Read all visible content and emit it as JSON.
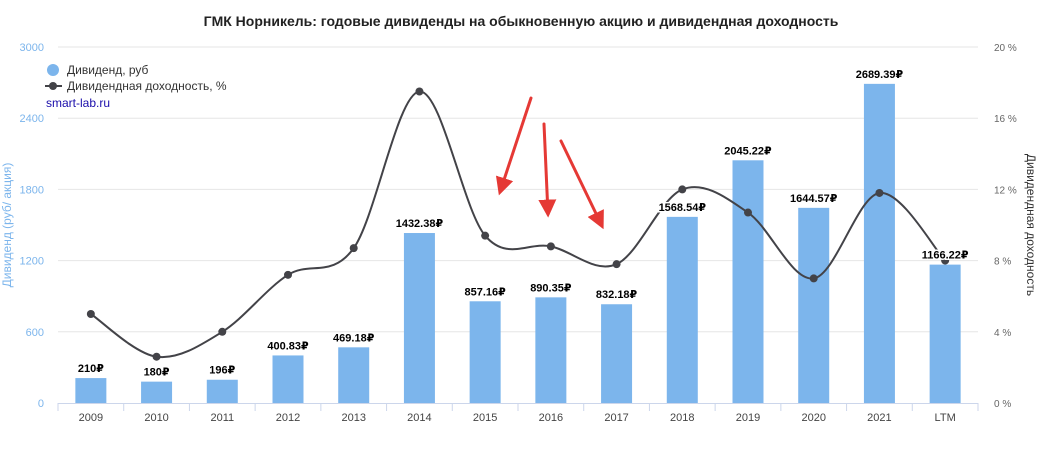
{
  "chart_data": {
    "type": "bar",
    "title": "ГМК Норникель: годовые дивиденды на обыкновенную акцию и дивидендная доходность",
    "categories": [
      "2009",
      "2010",
      "2011",
      "2012",
      "2013",
      "2014",
      "2015",
      "2016",
      "2017",
      "2018",
      "2019",
      "2020",
      "2021",
      "LTM"
    ],
    "series": [
      {
        "name": "Дивиденд, руб",
        "type": "bar",
        "axis": "left",
        "color": "#7cb5ec",
        "values": [
          210,
          180,
          196,
          400.83,
          469.18,
          1432.38,
          857.16,
          890.35,
          832.18,
          1568.54,
          2045.22,
          1644.57,
          2689.39,
          1166.22
        ],
        "labels": [
          "210₽",
          "180₽",
          "196₽",
          "400.83₽",
          "469.18₽",
          "1432.38₽",
          "857.16₽",
          "890.35₽",
          "832.18₽",
          "1568.54₽",
          "2045.22₽",
          "1644.57₽",
          "2689.39₽",
          "1166.22₽"
        ]
      },
      {
        "name": "Дивидендная доходность, %",
        "type": "line",
        "axis": "right",
        "color": "#434348",
        "values": [
          5.0,
          2.6,
          4.0,
          7.2,
          8.7,
          17.5,
          9.4,
          8.8,
          7.8,
          12.0,
          10.7,
          7.0,
          11.8,
          8.0
        ]
      }
    ],
    "y_left": {
      "label": "Дивиденд (руб/ акция)",
      "ylim": [
        0,
        3000
      ],
      "ticks": [
        0,
        600,
        1200,
        1800,
        2400,
        3000
      ],
      "tick_labels": [
        "0",
        "600",
        "1200",
        "1800",
        "2400",
        "3000"
      ]
    },
    "y_right": {
      "label": "Дивидендная доходность",
      "ylim": [
        0,
        20
      ],
      "ticks": [
        0,
        4,
        8,
        12,
        16,
        20
      ],
      "tick_labels": [
        "0 %",
        "4 %",
        "8 %",
        "12 %",
        "16 %",
        "20 %"
      ]
    },
    "grid": true,
    "legend_position": "top-left",
    "source": "smart-lab.ru",
    "annotations": [
      {
        "type": "arrow",
        "color": "#e53935",
        "target": "2015"
      },
      {
        "type": "arrow",
        "color": "#e53935",
        "target": "2016"
      },
      {
        "type": "arrow",
        "color": "#e53935",
        "target": "2017"
      }
    ]
  }
}
